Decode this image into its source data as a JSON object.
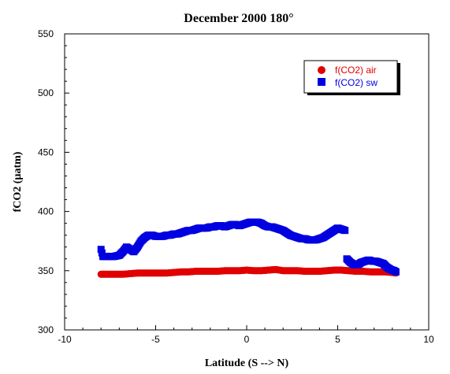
{
  "chart_data": {
    "type": "scatter",
    "title": "December 2000 180°",
    "xlabel": "Latitude (S --> N)",
    "ylabel": "fCO2 (µatm)",
    "xlim": [
      -10,
      10
    ],
    "ylim": [
      300,
      550
    ],
    "xticks": [
      "-10",
      "-5",
      "0",
      "5",
      "10"
    ],
    "yticks": [
      "300",
      "350",
      "400",
      "450",
      "500",
      "550"
    ],
    "grid": false,
    "legend_position": "top-right",
    "series": [
      {
        "name": "f(CO2) air",
        "marker": "circle",
        "color": "#e00000",
        "x": [
          -8.0,
          -7.6,
          -7.2,
          -6.8,
          -6.4,
          -6.0,
          -5.6,
          -5.2,
          -4.8,
          -4.4,
          -4.0,
          -3.6,
          -3.2,
          -2.8,
          -2.4,
          -2.0,
          -1.6,
          -1.2,
          -0.8,
          -0.4,
          0.0,
          0.4,
          0.8,
          1.2,
          1.6,
          2.0,
          2.4,
          2.8,
          3.2,
          3.6,
          4.0,
          4.4,
          4.8,
          5.2,
          5.6,
          6.0,
          6.4,
          6.8,
          7.2,
          7.6,
          8.0,
          8.2
        ],
        "y": [
          347,
          347,
          347,
          347,
          347.5,
          348,
          348,
          348,
          348,
          348,
          348.5,
          349,
          349,
          349.5,
          349.5,
          349.5,
          349.5,
          350,
          350,
          350,
          350.5,
          350,
          350,
          350.5,
          351,
          350,
          350,
          350,
          349.5,
          349.5,
          349.5,
          350,
          350.5,
          350.5,
          350,
          349.5,
          349.5,
          349,
          349,
          349,
          348.5,
          348
        ]
      },
      {
        "name": "f(CO2) sw",
        "marker": "square",
        "color": "#0000e0",
        "x": [
          -8.0,
          -7.9,
          -7.7,
          -7.5,
          -7.3,
          -7.0,
          -6.8,
          -6.6,
          -6.4,
          -6.2,
          -6.0,
          -5.8,
          -5.6,
          -5.4,
          -5.2,
          -5.0,
          -4.8,
          -4.6,
          -4.4,
          -4.2,
          -4.0,
          -3.8,
          -3.6,
          -3.4,
          -3.2,
          -3.0,
          -2.8,
          -2.6,
          -2.4,
          -2.2,
          -2.0,
          -1.8,
          -1.6,
          -1.4,
          -1.2,
          -1.0,
          -0.8,
          -0.6,
          -0.4,
          -0.2,
          0.0,
          0.2,
          0.4,
          0.6,
          0.8,
          1.0,
          1.2,
          1.4,
          1.6,
          1.8,
          2.0,
          2.2,
          2.4,
          2.6,
          2.8,
          3.0,
          3.2,
          3.4,
          3.6,
          3.8,
          4.0,
          4.2,
          4.4,
          4.6,
          4.8,
          5.0,
          5.2,
          5.4,
          5.5,
          5.7,
          5.9,
          6.1,
          6.3,
          6.5,
          6.7,
          6.9,
          7.1,
          7.3,
          7.5,
          7.7,
          7.9,
          8.1,
          8.2
        ],
        "y": [
          368,
          362,
          362,
          362,
          362,
          363,
          366,
          370,
          368,
          366,
          370,
          375,
          378,
          380,
          380,
          379,
          379,
          379,
          380,
          380,
          381,
          381,
          382,
          383,
          384,
          384,
          385,
          386,
          386,
          386,
          387,
          387,
          388,
          388,
          387,
          388,
          389,
          389,
          388,
          389,
          390,
          391,
          391,
          391,
          390,
          388,
          387,
          387,
          386,
          385,
          384,
          382,
          380,
          379,
          378,
          377,
          377,
          376,
          376,
          376,
          377,
          378,
          380,
          382,
          384,
          386,
          385,
          384,
          360,
          357,
          355,
          355,
          357,
          358,
          359,
          358,
          358,
          357,
          356,
          353,
          351,
          350,
          349
        ]
      }
    ]
  }
}
